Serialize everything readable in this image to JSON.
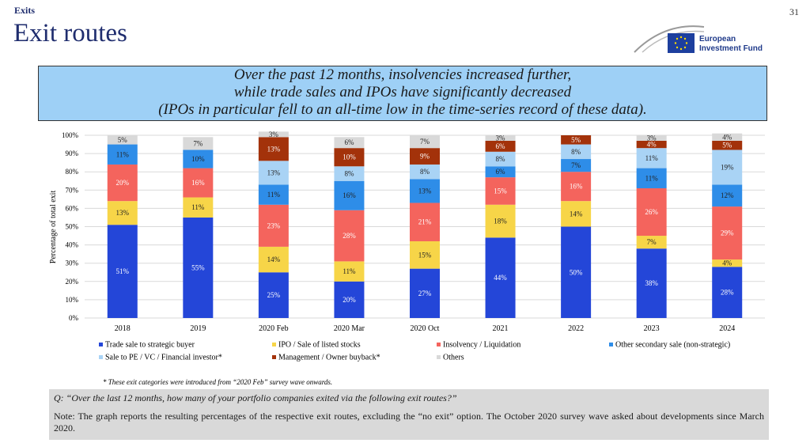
{
  "header": {
    "section": "Exits",
    "page": "31",
    "title": "Exit routes",
    "logo": [
      "European",
      "Investment Fund"
    ]
  },
  "summary": [
    "Over the past 12 months, insolvencies increased further,",
    "while trade sales and IPOs have significantly decreased",
    "(IPOs in particular fell to an all-time low in the time-series record of these data)."
  ],
  "chart_data": {
    "type": "stacked-bar",
    "y_label": "Percentage of total exit",
    "categories": [
      "2018",
      "2019",
      "2020 Feb",
      "2020 Mar",
      "2020 Oct",
      "2021",
      "2022",
      "2023",
      "2024"
    ],
    "ylim": [
      0,
      100
    ],
    "yticks": [
      {
        "value": 0,
        "label": "0%"
      },
      {
        "value": 10,
        "label": "10%"
      },
      {
        "value": 20,
        "label": "20%"
      },
      {
        "value": 30,
        "label": "30%"
      },
      {
        "value": 40,
        "label": "40%"
      },
      {
        "value": 50,
        "label": "50%"
      },
      {
        "value": 60,
        "label": "60%"
      },
      {
        "value": 70,
        "label": "70%"
      },
      {
        "value": 80,
        "label": "80%"
      },
      {
        "value": 90,
        "label": "90%"
      },
      {
        "value": 100,
        "label": "100%"
      }
    ],
    "grid": true,
    "series": [
      {
        "name": "Trade sale to strategic buyer",
        "color": "#2446d8",
        "values": [
          51,
          55,
          25,
          20,
          27,
          44,
          50,
          38,
          28
        ],
        "value_labels": [
          "51%",
          "55%",
          "25%",
          "20%",
          "27%",
          "44%",
          "50%",
          "38%",
          "28%"
        ]
      },
      {
        "name": "IPO / Sale of listed stocks",
        "color": "#f7d548",
        "values": [
          13,
          11,
          14,
          11,
          15,
          18,
          14,
          7,
          4
        ],
        "value_labels": [
          "13%",
          "11%",
          "14%",
          "11%",
          "15%",
          "18%",
          "14%",
          "7%",
          "4%"
        ]
      },
      {
        "name": "Insolvency / Liquidation",
        "color": "#f4645d",
        "values": [
          20,
          16,
          23,
          28,
          21,
          15,
          16,
          26,
          29
        ],
        "value_labels": [
          "20%",
          "16%",
          "23%",
          "28%",
          "21%",
          "15%",
          "16%",
          "26%",
          "29%"
        ]
      },
      {
        "name": "Other secondary sale (non-strategic)",
        "color": "#2e8de8",
        "values": [
          11,
          10,
          11,
          16,
          13,
          6,
          7,
          11,
          12
        ],
        "value_labels": [
          "11%",
          "10%",
          "11%",
          "16%",
          "13%",
          "6%",
          "7%",
          "11%",
          "12%"
        ]
      },
      {
        "name": "Sale to PE / VC / Financial investor*",
        "color": "#a9d3f5",
        "values": [
          null,
          null,
          13,
          8,
          8,
          8,
          8,
          11,
          19
        ],
        "value_labels": [
          null,
          null,
          "13%",
          "8%",
          "8%",
          "8%",
          "8%",
          "11%",
          "19%"
        ]
      },
      {
        "name": "Management / Owner buyback*",
        "color": "#a3320a",
        "values": [
          null,
          null,
          13,
          10,
          9,
          6,
          5,
          4,
          5
        ],
        "value_labels": [
          null,
          null,
          "13%",
          "10%",
          "9%",
          "6%",
          "5%",
          "4%",
          "5%"
        ]
      },
      {
        "name": "Others",
        "color": "#d9d9d9",
        "values": [
          5,
          7,
          3,
          6,
          7,
          3,
          null,
          3,
          4
        ],
        "value_labels": [
          "5%",
          "7%",
          "3%",
          "6%",
          "7%",
          "3%",
          null,
          "3%",
          "4%"
        ]
      }
    ]
  },
  "footnote": "* These exit categories were introduced from “2020 Feb” survey wave onwards.",
  "question": "Q: “Over the last 12 months, how many of your portfolio companies exited via the following exit routes?”",
  "note": "Note: The graph reports the resulting percentages of the respective exit routes, excluding the “no exit” option. The October 2020 survey wave asked about developments since March 2020."
}
